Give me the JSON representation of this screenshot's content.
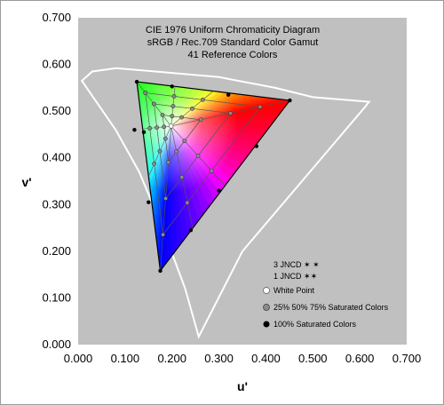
{
  "chart_data": {
    "type": "scatter",
    "title_lines": [
      "CIE 1976 Uniform Chromaticity Diagram",
      "sRGB / Rec.709 Standard Color Gamut",
      "41 Reference Colors"
    ],
    "xlabel": "u'",
    "ylabel": "v'",
    "xlim": [
      0,
      0.7
    ],
    "ylim": [
      0,
      0.7
    ],
    "x_ticks": [
      "0.000",
      "0.100",
      "0.200",
      "0.300",
      "0.400",
      "0.500",
      "0.600",
      "0.700"
    ],
    "y_ticks": [
      "0.000",
      "0.100",
      "0.200",
      "0.300",
      "0.400",
      "0.500",
      "0.600",
      "0.700"
    ],
    "plot_background": "#c0c0c0",
    "grid": false,
    "locus": [
      [
        0.257,
        0.017
      ],
      [
        0.228,
        0.12
      ],
      [
        0.18,
        0.25
      ],
      [
        0.13,
        0.37
      ],
      [
        0.08,
        0.46
      ],
      [
        0.008,
        0.565
      ],
      [
        0.03,
        0.585
      ],
      [
        0.08,
        0.592
      ],
      [
        0.14,
        0.587
      ],
      [
        0.3,
        0.573
      ],
      [
        0.42,
        0.55
      ],
      [
        0.5,
        0.53
      ],
      [
        0.62,
        0.52
      ],
      [
        0.612,
        0.51
      ],
      [
        0.35,
        0.2
      ],
      [
        0.257,
        0.017
      ]
    ],
    "primaries": {
      "red": [
        0.451,
        0.523
      ],
      "green": [
        0.125,
        0.563
      ],
      "blue": [
        0.175,
        0.158
      ]
    },
    "white_point": [
      0.198,
      0.468
    ],
    "saturated_points_100": [
      [
        0.451,
        0.523
      ],
      [
        0.125,
        0.563
      ],
      [
        0.175,
        0.158
      ],
      [
        0.2,
        0.553
      ],
      [
        0.32,
        0.535
      ],
      [
        0.38,
        0.425
      ],
      [
        0.3,
        0.33
      ],
      [
        0.24,
        0.245
      ],
      [
        0.14,
        0.455
      ],
      [
        0.15,
        0.305
      ],
      [
        0.12,
        0.46
      ]
    ],
    "saturation_levels": [
      "25%",
      "50%",
      "75%"
    ],
    "legend": [
      {
        "label": "3 JNCD",
        "symbol": "✶ ✶"
      },
      {
        "label": "1 JNCD",
        "symbol": "✶✶"
      },
      {
        "label": "White Point",
        "symbol": "white-dot"
      },
      {
        "label": "25% 50% 75% Saturated Colors",
        "symbol": "gray-dot"
      },
      {
        "label": "100% Saturated Colors",
        "symbol": "black-dot"
      }
    ],
    "legend_position": "bottom-right"
  }
}
